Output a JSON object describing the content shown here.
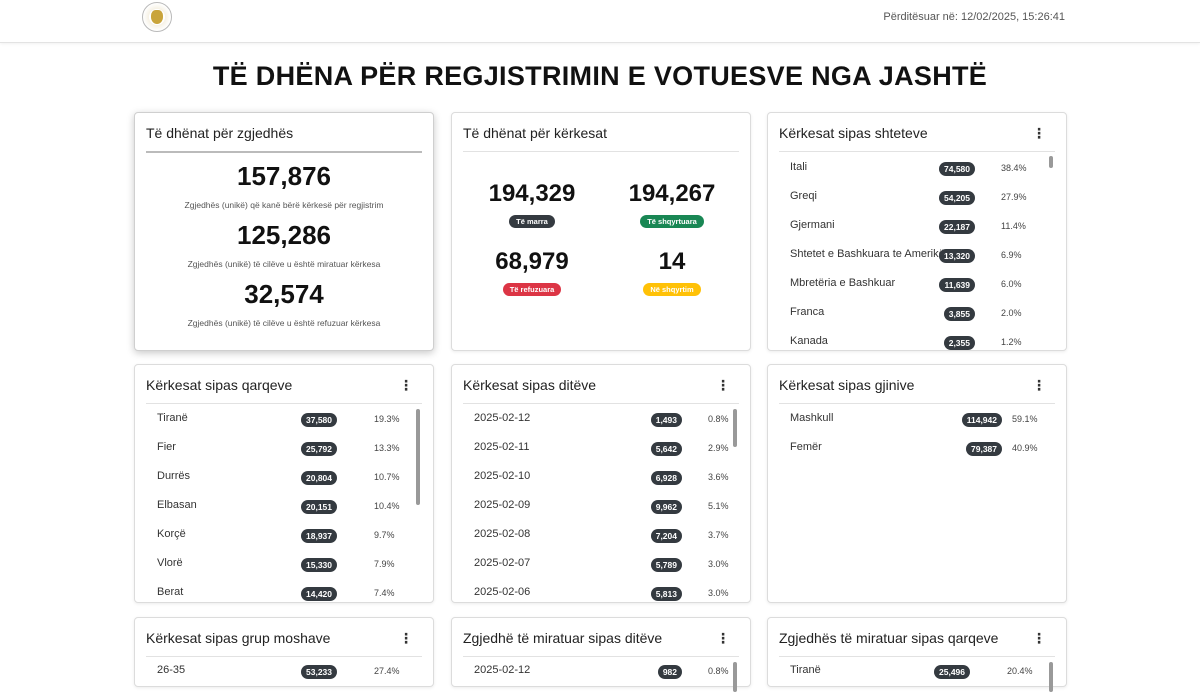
{
  "header": {
    "updated_text": "Përditësuar në: 12/02/2025, 15:26:41"
  },
  "page_title": "TË DHËNA PËR REGJISTRIMIN E VOTUESVE NGA JASHTË",
  "menu_icon": "⋮",
  "voters_card": {
    "title": "Të dhënat për zgjedhës",
    "stats": [
      {
        "value": "157,876",
        "caption": "Zgjedhës (unikë) që kanë bërë kërkesë për regjistrim"
      },
      {
        "value": "125,286",
        "caption": "Zgjedhës (unikë) të cilëve u është miratuar kërkesa"
      },
      {
        "value": "32,574",
        "caption": "Zgjedhës (unikë) të cilëve u është refuzuar kërkesa"
      }
    ]
  },
  "requests_card": {
    "title": "Të dhënat për kërkesat",
    "stats": [
      {
        "value": "194,329",
        "label": "Të marra",
        "color": "#343a40"
      },
      {
        "value": "194,267",
        "label": "Të shqyrtuara",
        "color": "#198754"
      },
      {
        "value": "68,979",
        "label": "Të refuzuara",
        "color": "#dc3545"
      },
      {
        "value": "14",
        "label": "Në shqyrtim",
        "color": "#ffc107"
      }
    ]
  },
  "countries_card": {
    "title": "Kërkesat sipas shteteve",
    "rows": [
      {
        "label": "Itali",
        "count": "74,580",
        "pct": "38.4%"
      },
      {
        "label": "Greqi",
        "count": "54,205",
        "pct": "27.9%"
      },
      {
        "label": "Gjermani",
        "count": "22,187",
        "pct": "11.4%"
      },
      {
        "label": "Shtetet e Bashkuara te Amerikës",
        "count": "13,320",
        "pct": "6.9%"
      },
      {
        "label": "Mbretëria e Bashkuar",
        "count": "11,639",
        "pct": "6.0%"
      },
      {
        "label": "Franca",
        "count": "3,855",
        "pct": "2.0%"
      },
      {
        "label": "Kanada",
        "count": "2,355",
        "pct": "1.2%"
      }
    ]
  },
  "districts_card": {
    "title": "Kërkesat sipas qarqeve",
    "rows": [
      {
        "label": "Tiranë",
        "count": "37,580",
        "pct": "19.3%"
      },
      {
        "label": "Fier",
        "count": "25,792",
        "pct": "13.3%"
      },
      {
        "label": "Durrës",
        "count": "20,804",
        "pct": "10.7%"
      },
      {
        "label": "Elbasan",
        "count": "20,151",
        "pct": "10.4%"
      },
      {
        "label": "Korçë",
        "count": "18,937",
        "pct": "9.7%"
      },
      {
        "label": "Vlorë",
        "count": "15,330",
        "pct": "7.9%"
      },
      {
        "label": "Berat",
        "count": "14,420",
        "pct": "7.4%"
      }
    ]
  },
  "days_card": {
    "title": "Kërkesat sipas ditëve",
    "rows": [
      {
        "label": "2025-02-12",
        "count": "1,493",
        "pct": "0.8%"
      },
      {
        "label": "2025-02-11",
        "count": "5,642",
        "pct": "2.9%"
      },
      {
        "label": "2025-02-10",
        "count": "6,928",
        "pct": "3.6%"
      },
      {
        "label": "2025-02-09",
        "count": "9,962",
        "pct": "5.1%"
      },
      {
        "label": "2025-02-08",
        "count": "7,204",
        "pct": "3.7%"
      },
      {
        "label": "2025-02-07",
        "count": "5,789",
        "pct": "3.0%"
      },
      {
        "label": "2025-02-06",
        "count": "5,813",
        "pct": "3.0%"
      }
    ]
  },
  "gender_card": {
    "title": "Kërkesat sipas gjinive",
    "rows": [
      {
        "label": "Mashkull",
        "count": "114,942",
        "pct": "59.1%"
      },
      {
        "label": "Femër",
        "count": "79,387",
        "pct": "40.9%"
      }
    ]
  },
  "age_card": {
    "title": "Kërkesat sipas grup moshave",
    "rows": [
      {
        "label": "26-35",
        "count": "53,233",
        "pct": "27.4%"
      }
    ]
  },
  "approved_days_card": {
    "title": "Zgjedhë të miratuar sipas ditëve",
    "rows": [
      {
        "label": "2025-02-12",
        "count": "982",
        "pct": "0.8%"
      }
    ]
  },
  "approved_districts_card": {
    "title": "Zgjedhës të miratuar sipas qarqeve",
    "rows": [
      {
        "label": "Tiranë",
        "count": "25,496",
        "pct": "20.4%"
      }
    ]
  }
}
